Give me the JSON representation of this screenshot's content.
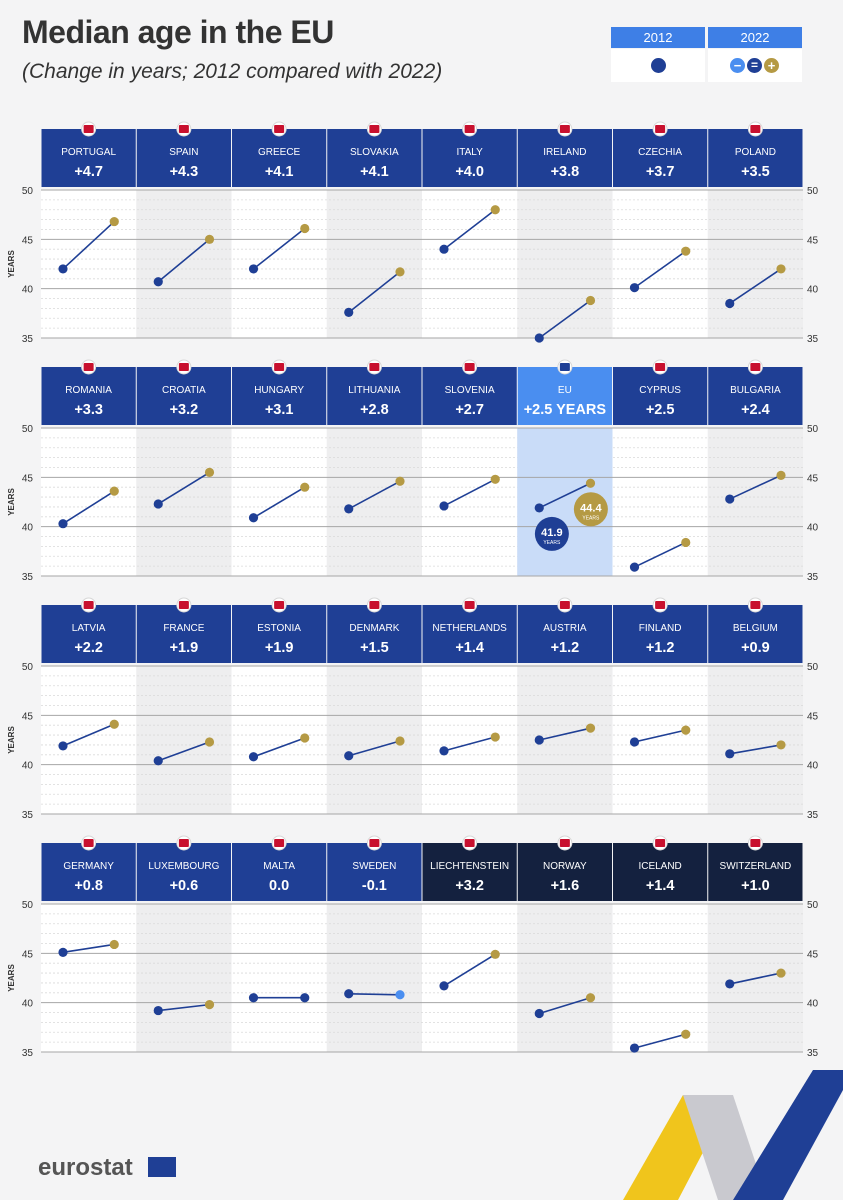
{
  "title": "Median age in the EU",
  "subtitle": "(Change in years; 2012 compared with 2022)",
  "legend": {
    "label_2012": "2012",
    "label_2022": "2022"
  },
  "axis": {
    "ylabel": "YEARS",
    "ticks": [
      "50",
      "45",
      "40",
      "35"
    ]
  },
  "colors": {
    "header": "#1f3f95",
    "header_eu": "#4a8ef0",
    "header_efta": "#14213f",
    "dot_2012": "#1f3f95",
    "dot_2022": "#b59a44",
    "dot_same": "#4a8ef0"
  },
  "footer": {
    "brand": "eurostat"
  },
  "chart_data": {
    "type": "line",
    "ylim": [
      35,
      50
    ],
    "ylabel": "YEARS",
    "grid": true,
    "countries": [
      {
        "name": "PORTUGAL",
        "change": "+4.7",
        "y2012": 42.0,
        "y2022": 46.8
      },
      {
        "name": "SPAIN",
        "change": "+4.3",
        "y2012": 40.7,
        "y2022": 45.0
      },
      {
        "name": "GREECE",
        "change": "+4.1",
        "y2012": 42.0,
        "y2022": 46.1
      },
      {
        "name": "SLOVAKIA",
        "change": "+4.1",
        "y2012": 37.6,
        "y2022": 41.7
      },
      {
        "name": "ITALY",
        "change": "+4.0",
        "y2012": 44.0,
        "y2022": 48.0
      },
      {
        "name": "IRELAND",
        "change": "+3.8",
        "y2012": 35.0,
        "y2022": 38.8
      },
      {
        "name": "CZECHIA",
        "change": "+3.7",
        "y2012": 40.1,
        "y2022": 43.8
      },
      {
        "name": "POLAND",
        "change": "+3.5",
        "y2012": 38.5,
        "y2022": 42.0
      },
      {
        "name": "ROMANIA",
        "change": "+3.3",
        "y2012": 40.3,
        "y2022": 43.6
      },
      {
        "name": "CROATIA",
        "change": "+3.2",
        "y2012": 42.3,
        "y2022": 45.5
      },
      {
        "name": "HUNGARY",
        "change": "+3.1",
        "y2012": 40.9,
        "y2022": 44.0
      },
      {
        "name": "LITHUANIA",
        "change": "+2.8",
        "y2012": 41.8,
        "y2022": 44.6
      },
      {
        "name": "SLOVENIA",
        "change": "+2.7",
        "y2012": 42.1,
        "y2022": 44.8
      },
      {
        "name": "EU",
        "change": "+2.5 YEARS",
        "y2012": 41.9,
        "y2022": 44.4,
        "label2012": "41.9",
        "label2022": "44.4",
        "sub": "YEARS",
        "highlight": true
      },
      {
        "name": "CYPRUS",
        "change": "+2.5",
        "y2012": 35.9,
        "y2022": 38.4
      },
      {
        "name": "BULGARIA",
        "change": "+2.4",
        "y2012": 42.8,
        "y2022": 45.2
      },
      {
        "name": "LATVIA",
        "change": "+2.2",
        "y2012": 41.9,
        "y2022": 44.1
      },
      {
        "name": "FRANCE",
        "change": "+1.9",
        "y2012": 40.4,
        "y2022": 42.3
      },
      {
        "name": "ESTONIA",
        "change": "+1.9",
        "y2012": 40.8,
        "y2022": 42.7
      },
      {
        "name": "DENMARK",
        "change": "+1.5",
        "y2012": 40.9,
        "y2022": 42.4
      },
      {
        "name": "NETHERLANDS",
        "change": "+1.4",
        "y2012": 41.4,
        "y2022": 42.8
      },
      {
        "name": "AUSTRIA",
        "change": "+1.2",
        "y2012": 42.5,
        "y2022": 43.7
      },
      {
        "name": "FINLAND",
        "change": "+1.2",
        "y2012": 42.3,
        "y2022": 43.5
      },
      {
        "name": "BELGIUM",
        "change": "+0.9",
        "y2012": 41.1,
        "y2022": 42.0
      },
      {
        "name": "GERMANY",
        "change": "+0.8",
        "y2012": 45.1,
        "y2022": 45.9
      },
      {
        "name": "LUXEMBOURG",
        "change": "+0.6",
        "y2012": 39.2,
        "y2022": 39.8
      },
      {
        "name": "MALTA",
        "change": "0.0",
        "y2012": 40.5,
        "y2022": 40.5
      },
      {
        "name": "SWEDEN",
        "change": "-0.1",
        "y2012": 40.9,
        "y2022": 40.8
      },
      {
        "name": "LIECHTENSTEIN",
        "change": "+3.2",
        "y2012": 41.7,
        "y2022": 44.9,
        "efta": true
      },
      {
        "name": "NORWAY",
        "change": "+1.6",
        "y2012": 38.9,
        "y2022": 40.5,
        "efta": true
      },
      {
        "name": "ICELAND",
        "change": "+1.4",
        "y2012": 35.4,
        "y2022": 36.8,
        "efta": true
      },
      {
        "name": "SWITZERLAND",
        "change": "+1.0",
        "y2012": 41.9,
        "y2022": 43.0,
        "efta": true
      }
    ]
  }
}
